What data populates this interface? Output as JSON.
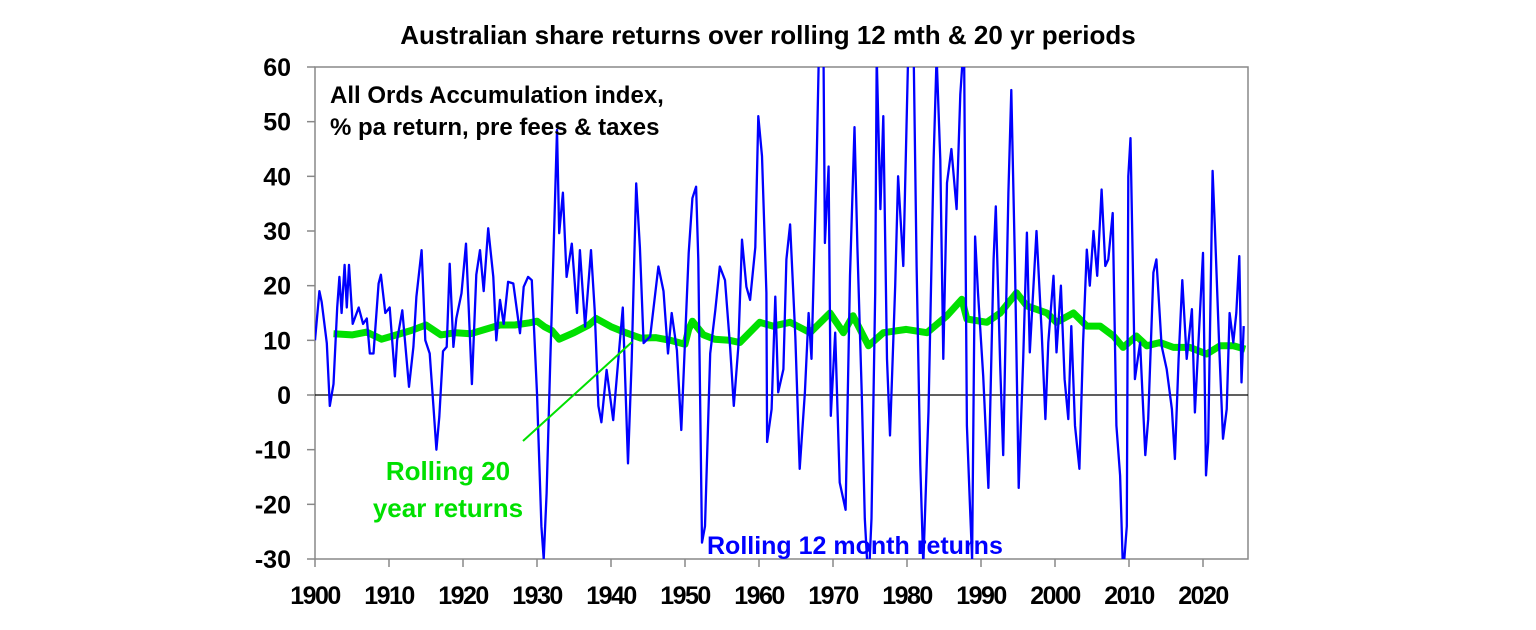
{
  "chart_data": {
    "type": "line",
    "title": "Australian share returns over rolling 12 mth & 20 yr periods",
    "annotation_box": [
      "All Ords Accumulation index,",
      "% pa return, pre fees & taxes"
    ],
    "xlabel": "",
    "ylabel": "",
    "xlim": [
      1900,
      2026
    ],
    "ylim": [
      -30,
      60
    ],
    "x_ticks": [
      "1900",
      "1910",
      "1920",
      "1930",
      "1940",
      "1950",
      "1960",
      "1970",
      "1980",
      "1990",
      "2000",
      "2010",
      "2020"
    ],
    "y_ticks": [
      "60",
      "50",
      "40",
      "30",
      "20",
      "10",
      "0",
      "-10",
      "-20",
      "-30"
    ],
    "grid": false,
    "zero_line": true,
    "series": [
      {
        "name": "Rolling 12 month returns",
        "label_lines": [
          "Rolling 12 month returns"
        ],
        "color": "#0000ff",
        "points": [
          [
            1900.0,
            10
          ],
          [
            1900.6,
            19
          ],
          [
            1900.9,
            17
          ],
          [
            1901.6,
            9.5
          ],
          [
            1902.0,
            -2
          ],
          [
            1902.5,
            2
          ],
          [
            1903.0,
            16
          ],
          [
            1903.3,
            21.6
          ],
          [
            1903.6,
            15
          ],
          [
            1904.0,
            23.8
          ],
          [
            1904.3,
            16
          ],
          [
            1904.6,
            23.8
          ],
          [
            1905.1,
            13
          ],
          [
            1905.9,
            16
          ],
          [
            1906.5,
            13
          ],
          [
            1907.0,
            14
          ],
          [
            1907.4,
            7.6
          ],
          [
            1907.9,
            7.6
          ],
          [
            1908.6,
            20.4
          ],
          [
            1908.9,
            22
          ],
          [
            1909.5,
            15
          ],
          [
            1910.1,
            16
          ],
          [
            1910.8,
            3.4
          ],
          [
            1911.1,
            10
          ],
          [
            1911.8,
            15.5
          ],
          [
            1912.7,
            1.5
          ],
          [
            1913.3,
            8.8
          ],
          [
            1913.7,
            18
          ],
          [
            1914.4,
            26.5
          ],
          [
            1914.9,
            10
          ],
          [
            1915.5,
            7.6
          ],
          [
            1916.0,
            -2
          ],
          [
            1916.4,
            -10
          ],
          [
            1916.8,
            -4
          ],
          [
            1917.3,
            8
          ],
          [
            1917.8,
            8.8
          ],
          [
            1918.2,
            24
          ],
          [
            1918.7,
            8.8
          ],
          [
            1919.1,
            14
          ],
          [
            1919.8,
            18.6
          ],
          [
            1920.4,
            27.7
          ],
          [
            1921.2,
            2
          ],
          [
            1921.8,
            22
          ],
          [
            1922.3,
            26.5
          ],
          [
            1922.8,
            19
          ],
          [
            1923.4,
            30.5
          ],
          [
            1924.1,
            21.6
          ],
          [
            1924.5,
            10
          ],
          [
            1925.0,
            17.4
          ],
          [
            1925.5,
            13
          ],
          [
            1926.1,
            20.7
          ],
          [
            1926.8,
            20.4
          ],
          [
            1927.7,
            11.3
          ],
          [
            1928.2,
            19.8
          ],
          [
            1928.8,
            21.6
          ],
          [
            1929.3,
            21
          ],
          [
            1930.0,
            0.3
          ],
          [
            1930.6,
            -24
          ],
          [
            1930.9,
            -30
          ],
          [
            1931.3,
            -18
          ],
          [
            1931.8,
            6.4
          ],
          [
            1932.2,
            24.7
          ],
          [
            1932.7,
            48.5
          ],
          [
            1933.0,
            29.6
          ],
          [
            1933.5,
            37
          ],
          [
            1934.0,
            21.6
          ],
          [
            1934.7,
            27.7
          ],
          [
            1935.4,
            15
          ],
          [
            1935.8,
            26.5
          ],
          [
            1936.5,
            12.5
          ],
          [
            1937.3,
            26.5
          ],
          [
            1937.8,
            15.5
          ],
          [
            1938.3,
            -2
          ],
          [
            1938.7,
            -5
          ],
          [
            1939.4,
            4.6
          ],
          [
            1940.3,
            -4.6
          ],
          [
            1940.9,
            5.2
          ],
          [
            1941.6,
            16
          ],
          [
            1942.3,
            -12.5
          ],
          [
            1942.8,
            6.4
          ],
          [
            1943.4,
            38.7
          ],
          [
            1943.9,
            27
          ],
          [
            1944.4,
            9.5
          ],
          [
            1945.3,
            10.7
          ],
          [
            1946.4,
            23.5
          ],
          [
            1947.1,
            19
          ],
          [
            1947.7,
            7.6
          ],
          [
            1948.2,
            15
          ],
          [
            1948.9,
            8.2
          ],
          [
            1949.5,
            -6.4
          ],
          [
            1950.5,
            26
          ],
          [
            1951.0,
            36
          ],
          [
            1951.5,
            38.1
          ],
          [
            1951.8,
            24.7
          ],
          [
            1952.3,
            -27
          ],
          [
            1952.7,
            -24
          ],
          [
            1953.4,
            7.6
          ],
          [
            1954.1,
            15.5
          ],
          [
            1954.7,
            23.5
          ],
          [
            1955.4,
            21
          ],
          [
            1956.1,
            8.8
          ],
          [
            1956.6,
            -2
          ],
          [
            1957.2,
            8.8
          ],
          [
            1957.7,
            28.4
          ],
          [
            1958.3,
            19.8
          ],
          [
            1958.8,
            17.4
          ],
          [
            1959.5,
            27
          ],
          [
            1959.9,
            51
          ],
          [
            1960.4,
            43.7
          ],
          [
            1961.0,
            18.7
          ],
          [
            1961.1,
            -8.6
          ],
          [
            1961.7,
            -2.6
          ],
          [
            1962.2,
            18
          ],
          [
            1962.6,
            0.5
          ],
          [
            1963.3,
            4.7
          ],
          [
            1963.7,
            24.8
          ],
          [
            1964.2,
            31.2
          ],
          [
            1964.9,
            10.8
          ],
          [
            1965.5,
            -13.5
          ],
          [
            1966.2,
            0.5
          ],
          [
            1966.7,
            15
          ],
          [
            1967.1,
            6.6
          ],
          [
            1967.8,
            43
          ],
          [
            1968.2,
            70
          ],
          [
            1968.7,
            65
          ],
          [
            1968.9,
            27.8
          ],
          [
            1969.4,
            41.8
          ],
          [
            1969.7,
            -3.8
          ],
          [
            1970.3,
            11.4
          ],
          [
            1970.9,
            -16
          ],
          [
            1971.7,
            -21
          ],
          [
            1972.3,
            21.8
          ],
          [
            1972.9,
            49
          ],
          [
            1973.3,
            27
          ],
          [
            1973.9,
            -0.7
          ],
          [
            1974.3,
            -22.6
          ],
          [
            1974.8,
            -35
          ],
          [
            1975.2,
            -22.6
          ],
          [
            1975.7,
            18.7
          ],
          [
            1975.9,
            62
          ],
          [
            1976.4,
            34
          ],
          [
            1976.8,
            51
          ],
          [
            1977.3,
            6.6
          ],
          [
            1977.7,
            -7.4
          ],
          [
            1978.4,
            20
          ],
          [
            1978.8,
            40
          ],
          [
            1979.5,
            23.6
          ],
          [
            1980.2,
            65
          ],
          [
            1980.9,
            62
          ],
          [
            1981.3,
            23.6
          ],
          [
            1981.8,
            -12.9
          ],
          [
            1982.2,
            -31
          ],
          [
            1982.9,
            -3
          ],
          [
            1983.6,
            43
          ],
          [
            1984.0,
            62
          ],
          [
            1984.5,
            43
          ],
          [
            1984.9,
            6.6
          ],
          [
            1985.4,
            38.8
          ],
          [
            1986.0,
            45
          ],
          [
            1986.7,
            34
          ],
          [
            1987.2,
            55
          ],
          [
            1987.7,
            65
          ],
          [
            1988.1,
            -5.6
          ],
          [
            1988.5,
            -20
          ],
          [
            1988.8,
            -30
          ],
          [
            1989.2,
            29
          ],
          [
            1989.6,
            18.7
          ],
          [
            1990.3,
            3.5
          ],
          [
            1991.0,
            -17
          ],
          [
            1991.7,
            24.8
          ],
          [
            1992.0,
            34.5
          ],
          [
            1992.6,
            5.3
          ],
          [
            1993.0,
            -11
          ],
          [
            1993.7,
            37
          ],
          [
            1994.1,
            55.8
          ],
          [
            1994.6,
            23.6
          ],
          [
            1995.1,
            -17
          ],
          [
            1995.7,
            6.6
          ],
          [
            1996.2,
            29.7
          ],
          [
            1996.6,
            7.8
          ],
          [
            1997.5,
            30
          ],
          [
            1998.2,
            11.4
          ],
          [
            1998.7,
            -4.4
          ],
          [
            1999.1,
            9.6
          ],
          [
            1999.8,
            21.8
          ],
          [
            2000.2,
            7.8
          ],
          [
            2000.8,
            20
          ],
          [
            2001.3,
            2.9
          ],
          [
            2001.8,
            -4.4
          ],
          [
            2002.2,
            12.6
          ],
          [
            2002.7,
            -5.6
          ],
          [
            2003.3,
            -13.5
          ],
          [
            2003.8,
            9.6
          ],
          [
            2004.3,
            26.6
          ],
          [
            2004.7,
            20
          ],
          [
            2005.2,
            30
          ],
          [
            2005.7,
            21.8
          ],
          [
            2006.3,
            37.6
          ],
          [
            2006.8,
            23.6
          ],
          [
            2007.2,
            24.8
          ],
          [
            2007.8,
            33.3
          ],
          [
            2008.3,
            -5.6
          ],
          [
            2008.8,
            -14.7
          ],
          [
            2009.2,
            -33
          ],
          [
            2009.7,
            -24
          ],
          [
            2009.9,
            40
          ],
          [
            2010.2,
            47
          ],
          [
            2010.8,
            2.9
          ],
          [
            2011.5,
            9.6
          ],
          [
            2012.2,
            -11
          ],
          [
            2012.6,
            -4.4
          ],
          [
            2013.3,
            22.4
          ],
          [
            2013.7,
            24.8
          ],
          [
            2014.4,
            9
          ],
          [
            2015.1,
            4.7
          ],
          [
            2015.8,
            -2.6
          ],
          [
            2016.2,
            -11.7
          ],
          [
            2016.7,
            6.6
          ],
          [
            2017.2,
            21
          ],
          [
            2017.8,
            6.6
          ],
          [
            2018.5,
            15.7
          ],
          [
            2018.9,
            -3.2
          ],
          [
            2020.0,
            26
          ],
          [
            2020.4,
            -14.7
          ],
          [
            2020.7,
            -8.6
          ],
          [
            2021.3,
            41
          ],
          [
            2021.6,
            31
          ],
          [
            2022.2,
            8.4
          ],
          [
            2022.7,
            -8
          ],
          [
            2023.2,
            -2.6
          ],
          [
            2023.6,
            15
          ],
          [
            2024.1,
            9.6
          ],
          [
            2024.5,
            15
          ],
          [
            2024.9,
            25.4
          ],
          [
            2025.2,
            2.3
          ],
          [
            2025.5,
            12.6
          ]
        ]
      },
      {
        "name": "Rolling 20 year returns",
        "label_lines": [
          "Rolling 20",
          "year returns"
        ],
        "color": "#00e000",
        "points": [
          [
            1902.5,
            11.2
          ],
          [
            1905,
            11
          ],
          [
            1907,
            11.5
          ],
          [
            1909,
            10.2
          ],
          [
            1911,
            11
          ],
          [
            1913,
            11.8
          ],
          [
            1915,
            12.8
          ],
          [
            1917,
            11
          ],
          [
            1919,
            11.4
          ],
          [
            1921,
            11.2
          ],
          [
            1923,
            12
          ],
          [
            1925,
            12.8
          ],
          [
            1927,
            12.8
          ],
          [
            1929,
            13.2
          ],
          [
            1930,
            13.5
          ],
          [
            1931,
            12.5
          ],
          [
            1932,
            11.8
          ],
          [
            1933,
            10.2
          ],
          [
            1935,
            11.4
          ],
          [
            1937,
            12.8
          ],
          [
            1938,
            14
          ],
          [
            1940,
            12.5
          ],
          [
            1942,
            11.4
          ],
          [
            1944,
            10.4
          ],
          [
            1946,
            10.5
          ],
          [
            1948,
            10
          ],
          [
            1950,
            9.3
          ],
          [
            1950.5,
            12
          ],
          [
            1951,
            13.5
          ],
          [
            1952.5,
            11
          ],
          [
            1954,
            10.2
          ],
          [
            1956,
            10
          ],
          [
            1957.4,
            9.6
          ],
          [
            1960.1,
            13.3
          ],
          [
            1961.9,
            12.6
          ],
          [
            1964.2,
            13.3
          ],
          [
            1966.9,
            11.4
          ],
          [
            1969.6,
            15
          ],
          [
            1971.4,
            11.4
          ],
          [
            1972.7,
            14.5
          ],
          [
            1974.8,
            9
          ],
          [
            1976.8,
            11.4
          ],
          [
            1979.9,
            12
          ],
          [
            1982.7,
            11.4
          ],
          [
            1985.4,
            14.5
          ],
          [
            1987.4,
            17.5
          ],
          [
            1988.1,
            13.9
          ],
          [
            1990.8,
            13.3
          ],
          [
            1992.6,
            15
          ],
          [
            1994.8,
            18.7
          ],
          [
            1996.2,
            16.3
          ],
          [
            1998.9,
            15
          ],
          [
            2000.2,
            13.3
          ],
          [
            2002.5,
            15
          ],
          [
            2004.3,
            12.6
          ],
          [
            2006.1,
            12.6
          ],
          [
            2007.9,
            10.8
          ],
          [
            2009.2,
            8.7
          ],
          [
            2011.0,
            10.8
          ],
          [
            2012.4,
            9
          ],
          [
            2014.2,
            9.6
          ],
          [
            2016,
            8.7
          ],
          [
            2018.2,
            8.7
          ],
          [
            2020.5,
            7.5
          ],
          [
            2022.3,
            9
          ],
          [
            2024.1,
            9
          ],
          [
            2025.7,
            8.4
          ]
        ]
      }
    ]
  }
}
